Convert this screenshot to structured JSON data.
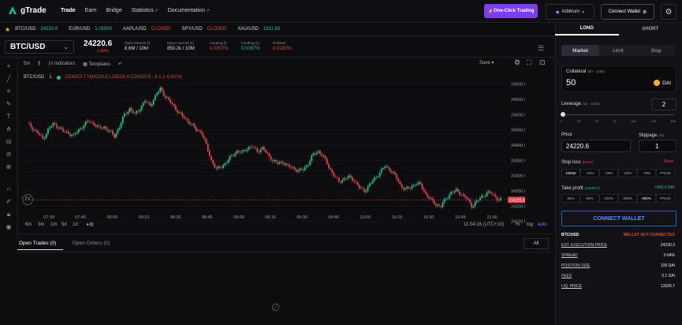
{
  "app": {
    "name": "gTrade"
  },
  "nav": {
    "items": [
      "Trade",
      "Earn",
      "Bridge",
      "Statistics",
      "Documentation"
    ]
  },
  "header": {
    "one_click": "One-Click Trading",
    "network": "Arbitrum",
    "connect": "Connect Wallet"
  },
  "ticker": [
    {
      "pair": "BTC/USD",
      "value": "24220.6",
      "status": "price"
    },
    {
      "pair": "EUR/USD",
      "value": "1.05930",
      "status": "price"
    },
    {
      "pair": "AAPL/USD",
      "value": "CLOSED",
      "status": "closed"
    },
    {
      "pair": "SPY/USD",
      "value": "CLOSED",
      "status": "closed"
    },
    {
      "pair": "XAU/USD",
      "value": "1911.83",
      "status": "price"
    }
  ],
  "pair": {
    "name": "BTC/USD",
    "price": "24220.6",
    "change": "-1.80%",
    "stats": [
      {
        "label": "Open Interest (l)",
        "value": "8.6M / 10M",
        "color": "neutral"
      },
      {
        "label": "Open Interest (s)",
        "value": "850.2k / 10M",
        "color": "neutral"
      },
      {
        "label": "Funding (l)",
        "value": "0.0007%",
        "color": "red"
      },
      {
        "label": "Funding (s)",
        "value": "0.0067%",
        "color": "green"
      },
      {
        "label": "Rollover",
        "value": "0.0182%",
        "color": "red"
      }
    ]
  },
  "toolbar": {
    "interval": "5m",
    "indicators": "Indicators",
    "templates": "Templates",
    "save": "Save"
  },
  "legend": {
    "symbol": "BTC/USD",
    "interval": "1",
    "ohlc": "O24223.7  H24226.0  L24216.4  C24220.6  −3.1 (−0.01%)"
  },
  "chart_data": {
    "type": "candlestick",
    "current_price": "24220.6",
    "ylim": [
      24180,
      24620
    ],
    "y_ticks": [
      "24600.0",
      "24550.0",
      "24500.0",
      "24450.0",
      "24400.0",
      "24350.0",
      "24300.0",
      "24250.0",
      "24200.0",
      "24150.0"
    ],
    "x_ticks": [
      "07:30",
      "07:45",
      "08:00",
      "08:15",
      "08:30",
      "08:45",
      "09:00",
      "09:15",
      "09:30",
      "09:45",
      "10:00",
      "10:15",
      "10:30",
      "10:45",
      "11:00"
    ],
    "close_path": [
      24470,
      24455,
      24440,
      24420,
      24450,
      24470,
      24460,
      24445,
      24440,
      24430,
      24450,
      24465,
      24480,
      24470,
      24455,
      24460,
      24445,
      24430,
      24460,
      24500,
      24520,
      24500,
      24520,
      24545,
      24530,
      24560,
      24585,
      24560,
      24540,
      24520,
      24500,
      24485,
      24470,
      24450,
      24445,
      24400,
      24350,
      24320,
      24330,
      24345,
      24365,
      24380,
      24375,
      24390,
      24395,
      24380,
      24390,
      24370,
      24350,
      24340,
      24345,
      24330,
      24325,
      24315,
      24320,
      24340,
      24370,
      24380,
      24360,
      24330,
      24300,
      24280,
      24290,
      24295,
      24285,
      24260,
      24250,
      24270,
      24290,
      24310,
      24330,
      24320,
      24300,
      24270,
      24255,
      24260,
      24275,
      24270,
      24240,
      24220,
      24205,
      24200,
      24225,
      24245,
      24250,
      24240,
      24225,
      24200,
      24215,
      24230,
      24245,
      24240,
      24225,
      24220
    ]
  },
  "timebar": {
    "ranges": [
      "6m",
      "3m",
      "1m",
      "5d",
      "1d"
    ],
    "clock": "11:04:16 (UTC+10)",
    "pct": "%",
    "log": "log",
    "auto": "auto"
  },
  "bottom_tabs": {
    "open_trades": "Open Trades (0)",
    "open_orders": "Open Orders (0)",
    "all": "All"
  },
  "side": {
    "long": "LONG",
    "short": "SHORT",
    "order_types": [
      "Market",
      "Limit",
      "Stop"
    ],
    "collateral": {
      "label": "Collateral",
      "range": "(50 - 125k)",
      "value": "50",
      "unit": "DAI"
    },
    "leverage": {
      "label": "Leverage",
      "range": "(2x - 150x)",
      "value": "2",
      "marks": [
        "2",
        "25",
        "50",
        "75",
        "100",
        "125",
        "150"
      ]
    },
    "price": {
      "label": "Price",
      "value": "24220.6"
    },
    "slippage": {
      "label": "Slippage",
      "unit": "(%)",
      "value": "1"
    },
    "stop_loss": {
      "label": "Stop loss",
      "tag": "(None)",
      "right": "None",
      "options": [
        "NONE",
        "-10%",
        "-25%",
        "-50%",
        "-75%",
        "PRICE"
      ]
    },
    "take_profit": {
      "label": "Take profit",
      "tag": "(13326.7)",
      "right": "+450.0 DAI",
      "options": [
        "25%",
        "50%",
        "100%",
        "300%",
        "900%",
        "PRICE"
      ]
    },
    "wallet_button": "CONNECT WALLET",
    "info": [
      {
        "k": "BTC/USD",
        "v": "WALLET NOT CONNECTED"
      },
      {
        "k": "EST. EXECUTION PRICE",
        "v": "24230.3"
      },
      {
        "k": "SPREAD",
        "v": "0.04%"
      },
      {
        "k": "POSITION SIZE",
        "v": "100 DAI"
      },
      {
        "k": "FEES",
        "v": "0.1 DAI"
      },
      {
        "k": "LIQ. PRICE",
        "v": "13326.7"
      }
    ]
  },
  "colors": {
    "up": "#1fc08a",
    "down": "#e0414a",
    "accent": "#7b3ff2",
    "blue": "#2c5bd0"
  }
}
